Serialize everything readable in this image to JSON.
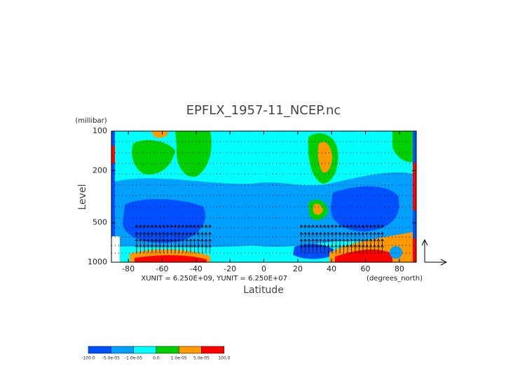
{
  "chart_data": {
    "type": "contour",
    "title": "EPFLX_1957-11_NCEP.nc",
    "y_label": "Level",
    "y_units": "(millibar)",
    "x_label": "Latitude",
    "x_units": "(degrees_north)",
    "annotation": "XUNIT = 6.250E+09, YUNIT = 6.250E+07",
    "xlim": [
      -90,
      90
    ],
    "xticks": [
      -80,
      -60,
      -40,
      -20,
      0,
      20,
      40,
      60,
      80
    ],
    "ylim": [
      1000,
      100
    ],
    "yticks": [
      100,
      200,
      500,
      1000
    ],
    "y_log": true,
    "colorbar_levels": [
      {
        "value": -100,
        "label": "-100.0"
      },
      {
        "value": -5e-05,
        "label": "-5.0e-05"
      },
      {
        "value": -1e-05,
        "label": "-1.0e-05"
      },
      {
        "value": 0,
        "label": "0.0"
      },
      {
        "value": 1e-05,
        "label": "1.0e-05"
      },
      {
        "value": 5e-05,
        "label": "5.0e-05"
      },
      {
        "value": 100,
        "label": "100.0"
      }
    ],
    "colorbar_colors": [
      "#0050ff",
      "#00a0ff",
      "#00ffff",
      "#00d000",
      "#ff9900",
      "#ff0000"
    ]
  }
}
